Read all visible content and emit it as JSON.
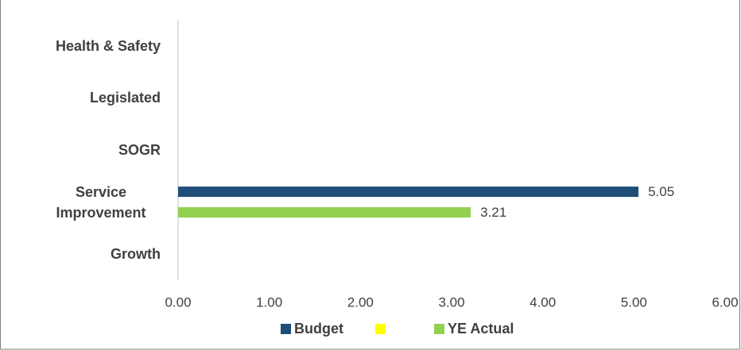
{
  "chart_data": {
    "type": "bar",
    "orientation": "horizontal",
    "categories": [
      "Health & Safety",
      "Legislated",
      "SOGR",
      "Service Improvement",
      "Growth"
    ],
    "series": [
      {
        "name": "Budget",
        "color": "#1f4e79",
        "values": [
          null,
          null,
          null,
          5.05,
          null
        ]
      },
      {
        "color": "#ffff00",
        "values": [
          null,
          null,
          null,
          null,
          null
        ]
      },
      {
        "name": "YE Actual",
        "color": "#92d050",
        "values": [
          null,
          null,
          null,
          3.21,
          null
        ]
      }
    ],
    "xlim": [
      0,
      6
    ],
    "xticks": [
      {
        "value": 0,
        "label": "0.00"
      },
      {
        "value": 1,
        "label": "1.00"
      },
      {
        "value": 2,
        "label": "2.00"
      },
      {
        "value": 3,
        "label": "3.00"
      },
      {
        "value": 4,
        "label": "4.00"
      },
      {
        "value": 5,
        "label": "5.00"
      },
      {
        "value": 6,
        "label": "6.00"
      }
    ],
    "grid": false,
    "legend": "bottom"
  }
}
